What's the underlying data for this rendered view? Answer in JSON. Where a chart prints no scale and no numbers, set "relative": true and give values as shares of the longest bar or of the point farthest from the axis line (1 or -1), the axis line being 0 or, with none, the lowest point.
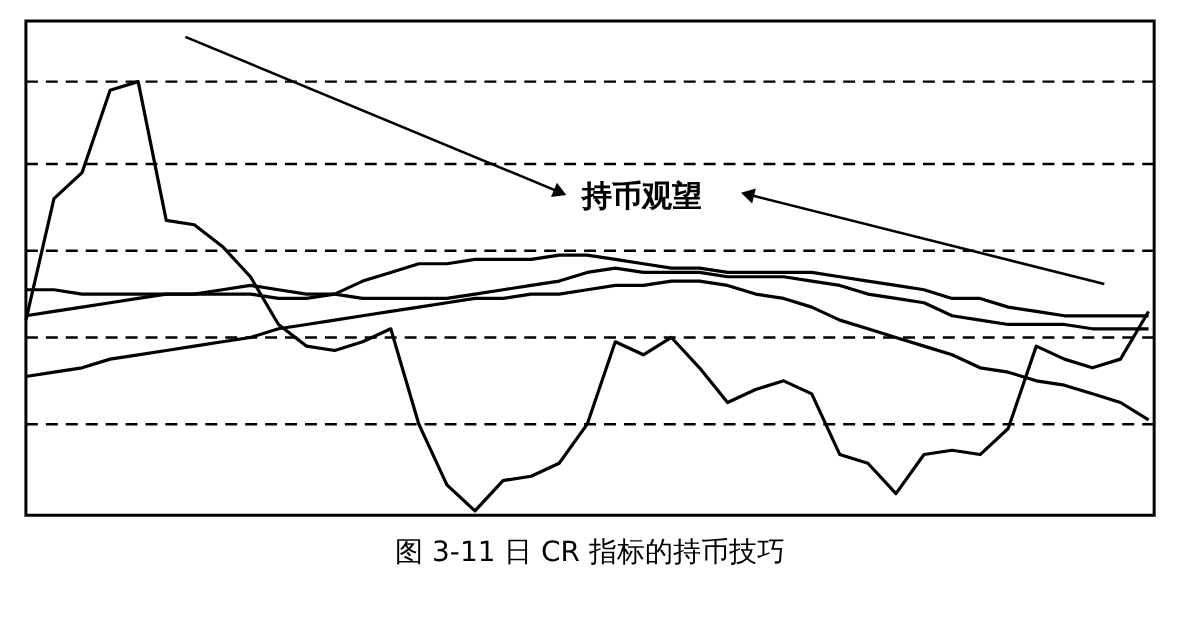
{
  "chart_data": {
    "type": "line",
    "title": "图 3-11  日 CR 指标的持币技巧",
    "relative": true,
    "marker": "none",
    "line_style": "solid",
    "categories": [
      null,
      null,
      null,
      null,
      null,
      null,
      null,
      null,
      null,
      null,
      null,
      null,
      null,
      null,
      null,
      null,
      null,
      null,
      null,
      null,
      null,
      null,
      null,
      null,
      null,
      null,
      null,
      null,
      null,
      null,
      null,
      null,
      null,
      null,
      null,
      null,
      null,
      null,
      null,
      null,
      null
    ],
    "series": [
      {
        "color": "#000000",
        "values": [
          0.45,
          0.73,
          0.79,
          0.98,
          1.0,
          0.68,
          0.67,
          0.62,
          0.55,
          0.44,
          0.39,
          0.38,
          0.4,
          0.43,
          0.21,
          0.07,
          0.01,
          0.08,
          0.09,
          0.12,
          0.21,
          0.4,
          0.37,
          0.41,
          0.34,
          0.26,
          0.29,
          0.31,
          0.28,
          0.14,
          0.12,
          0.05,
          0.14,
          0.15,
          0.14,
          0.2,
          0.39,
          0.36,
          0.34,
          0.36,
          0.47
        ]
      },
      {
        "color": "#000000",
        "values": [
          0.52,
          0.52,
          0.51,
          0.51,
          0.51,
          0.51,
          0.51,
          0.51,
          0.51,
          0.5,
          0.5,
          0.51,
          0.54,
          0.56,
          0.58,
          0.58,
          0.59,
          0.59,
          0.59,
          0.6,
          0.6,
          0.59,
          0.58,
          0.57,
          0.57,
          0.56,
          0.56,
          0.56,
          0.56,
          0.55,
          0.54,
          0.53,
          0.52,
          0.5,
          0.5,
          0.48,
          0.47,
          0.46,
          0.46,
          0.46,
          0.46
        ]
      },
      {
        "color": "#000000",
        "values": [
          0.46,
          0.47,
          0.48,
          0.49,
          0.5,
          0.51,
          0.51,
          0.52,
          0.53,
          0.52,
          0.51,
          0.51,
          0.5,
          0.5,
          0.5,
          0.5,
          0.51,
          0.52,
          0.53,
          0.54,
          0.56,
          0.57,
          0.56,
          0.56,
          0.56,
          0.55,
          0.55,
          0.55,
          0.54,
          0.53,
          0.51,
          0.5,
          0.49,
          0.46,
          0.45,
          0.44,
          0.44,
          0.44,
          0.43,
          0.43,
          0.43
        ]
      },
      {
        "color": "#000000",
        "values": [
          0.32,
          0.33,
          0.34,
          0.36,
          0.37,
          0.38,
          0.39,
          0.4,
          0.41,
          0.43,
          0.44,
          0.45,
          0.46,
          0.47,
          0.48,
          0.49,
          0.5,
          0.5,
          0.51,
          0.51,
          0.52,
          0.53,
          0.53,
          0.54,
          0.54,
          0.53,
          0.51,
          0.5,
          0.48,
          0.45,
          0.43,
          0.41,
          0.39,
          0.37,
          0.34,
          0.33,
          0.31,
          0.3,
          0.28,
          0.26,
          0.22
        ]
      }
    ],
    "ref_lines": [
      {
        "axis": "y",
        "value": 1.0,
        "color": "#000000",
        "line_style": "dashed"
      },
      {
        "axis": "y",
        "value": 0.81,
        "color": "#000000",
        "line_style": "dashed"
      },
      {
        "axis": "y",
        "value": 0.61,
        "color": "#000000",
        "line_style": "dashed"
      },
      {
        "axis": "y",
        "value": 0.41,
        "color": "#000000",
        "line_style": "dashed"
      },
      {
        "axis": "y",
        "value": 0.21,
        "color": "#000000",
        "line_style": "dashed"
      }
    ],
    "annotations": [
      "持币观望"
    ]
  }
}
